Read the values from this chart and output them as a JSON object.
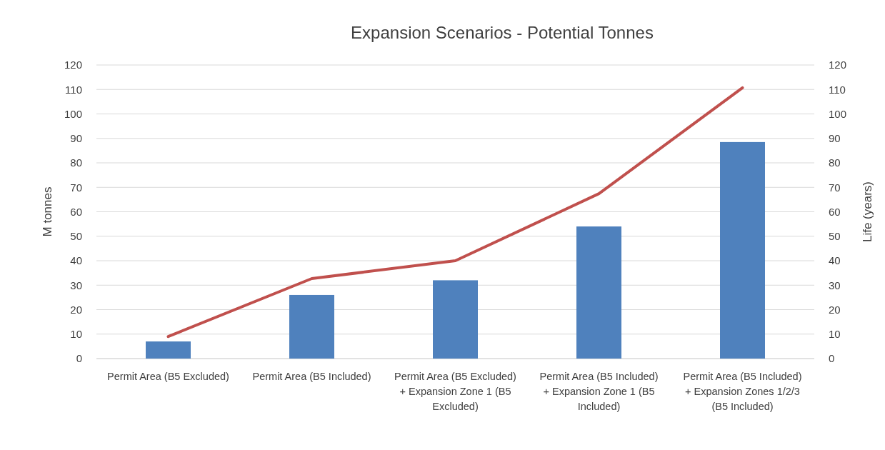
{
  "chart_data": {
    "type": "bar",
    "title": "Expansion Scenarios - Potential Tonnes",
    "ylabel": "M tonnes",
    "y2label": "Life (years)",
    "categories": [
      "Permit Area (B5 Excluded)",
      "Permit Area (B5 Included)",
      "Permit Area (B5 Excluded) + Expansion Zone 1 (B5 Excluded)",
      "Permit Area (B5 Included) + Expansion Zone 1 (B5 Included)",
      "Permit Area (B5 Included) + Expansion Zones 1/2/3 (B5 Included)"
    ],
    "series": [
      {
        "color": "#4f81bd",
        "values": [
          7,
          26,
          32,
          54,
          88.5
        ]
      },
      {
        "type": "line",
        "axis": "y2",
        "color": "#c0504d",
        "values": [
          9,
          32.7,
          40,
          67.4,
          110.7
        ]
      }
    ],
    "ylim": [
      0,
      120
    ],
    "yticks": [
      0,
      10,
      20,
      30,
      40,
      50,
      60,
      70,
      80,
      90,
      100,
      110,
      120
    ],
    "y2lim": [
      0,
      120
    ],
    "y2ticks": [
      0,
      10,
      20,
      30,
      40,
      50,
      60,
      70,
      80,
      90,
      100,
      110,
      120
    ],
    "grid": "y",
    "marker": "none",
    "line_style": "solid"
  }
}
